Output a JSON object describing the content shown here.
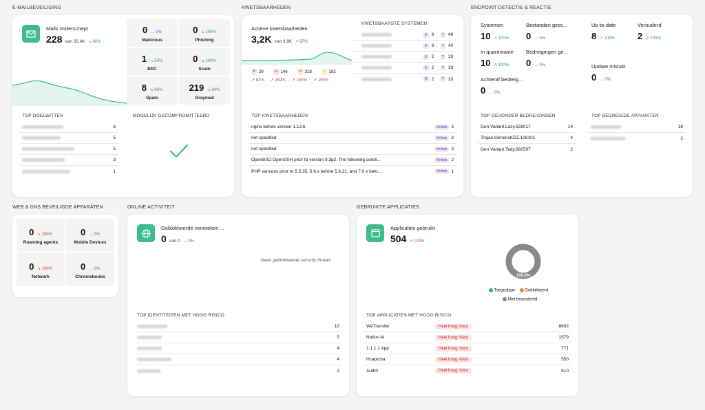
{
  "sections": {
    "email": "E-MAILBEVEILIGING",
    "vuln": "KWETSBAARHEDEN",
    "edr": "ENDPOINT DETECTIE & REACTIE",
    "web": "WEB & DNS BEVEILIGDE APPARATEN",
    "online": "ONLINE ACTIVITEIT",
    "apps": "GEBRUIKTE APPLICATIES"
  },
  "email": {
    "title": "Mails onderschept",
    "value": "228",
    "of": "van 35,4K",
    "trend": "↘ 86%",
    "tiles": [
      {
        "value": "0",
        "trend": "→ 0%",
        "label": "Malicious"
      },
      {
        "value": "0",
        "trend": "↘ 100%",
        "label": "Phishing"
      },
      {
        "value": "1",
        "trend": "↘ 50%",
        "label": "BEC"
      },
      {
        "value": "0",
        "trend": "↘ 100%",
        "label": "Scam"
      },
      {
        "value": "8",
        "trend": "↘ 96%",
        "label": "Spam"
      },
      {
        "value": "219",
        "trend": "↘ 84%",
        "label": "Graymail"
      }
    ],
    "top_targets_title": "TOP DOELWITTEN",
    "top_targets": [
      "6",
      "5",
      "5",
      "3",
      "1"
    ],
    "compromised_title": "MOGELIJK GECOMPROMITTEERD"
  },
  "vuln": {
    "title": "Actieve kwetsbaarheden",
    "value": "3,2K",
    "of": "van 3,9K",
    "trend": "↗ 97%",
    "chips": [
      {
        "letter": "K",
        "value": "29",
        "trend": "↗ 81%"
      },
      {
        "letter": "H",
        "value": "146",
        "trend": "↗ 152%"
      },
      {
        "letter": "M",
        "value": "318",
        "trend": "↗ 150%"
      },
      {
        "letter": "L",
        "value": "182",
        "trend": "↗ 109%"
      }
    ],
    "systems_title": "KWETSBAARSTE SYSTEMEN",
    "systems": [
      {
        "k": "9",
        "t": "46"
      },
      {
        "k": "9",
        "t": "40"
      },
      {
        "k": "2",
        "t": "33"
      },
      {
        "k": "2",
        "t": "33"
      },
      {
        "k": "2",
        "t": "33"
      }
    ],
    "top_title": "TOP KWETSBAARHEDEN",
    "top": [
      {
        "name": "nginx before version 1.13.6.",
        "sev": "Kritiek",
        "count": "3"
      },
      {
        "name": "not specified",
        "sev": "Kritiek",
        "count": "3"
      },
      {
        "name": "not specified",
        "sev": "Kritiek",
        "count": "3"
      },
      {
        "name": "OpenBSD OpenSSH prior to version 9.3p2. The following condi...",
        "sev": "Kritiek",
        "count": "2"
      },
      {
        "name": "PHP versions prior to 5.5.35, 5.6.x before 5.6.21, and 7.0.x befo...",
        "sev": "Kritiek",
        "count": "1"
      }
    ]
  },
  "edr": {
    "stats": [
      {
        "label": "Systemen",
        "value": "10",
        "trend": "↗ 100%"
      },
      {
        "label": "Bestanden gesc...",
        "value": "0",
        "trend": "→ 0%"
      },
      {
        "label": "Up-to-date",
        "value": "8",
        "trend": "↗ 100%"
      },
      {
        "label": "Verouderd",
        "value": "2",
        "trend": "↗ 100%"
      },
      {
        "label": "In quarantaine",
        "value": "10",
        "trend": "↗ 100%"
      },
      {
        "label": "Bedreigingen ge...",
        "value": "0",
        "trend": "→ 0%"
      },
      {
        "label": "Update mislukt",
        "value": "0",
        "trend": "→ 0%"
      },
      {
        "label": "Achteraf bedreig...",
        "value": "0",
        "trend": "→ 0%"
      }
    ],
    "threats_title": "TOP GEVONDEN BEDREIGINGEN",
    "threats": [
      {
        "name": "Gen:Variant.Lazy.559017",
        "count": "14"
      },
      {
        "name": "Trojan.GenericKDZ.108101",
        "count": "4"
      },
      {
        "name": "Gen:Variant.Tedy.660597",
        "count": "2"
      }
    ],
    "devices_title": "TOP BEDREIGDE APPARATEN",
    "devices": [
      "18",
      "2"
    ]
  },
  "web": {
    "tiles": [
      {
        "value": "0",
        "trend": "↘ 100%",
        "label": "Roaming agents"
      },
      {
        "value": "0",
        "trend": "→ 0%",
        "label": "Mobile Devices"
      },
      {
        "value": "0",
        "trend": "↘ 100%",
        "label": "Network"
      },
      {
        "value": "0",
        "trend": "→ 0%",
        "label": "Chromebooks"
      }
    ]
  },
  "online": {
    "title": "Geblokkeerde verzoeken ...",
    "value": "0",
    "of": "van 0",
    "trend": "→ 0%",
    "empty": "Geen geblokkeerde security threats",
    "identities_title": "TOP IDENTITEITEN MET HOOG RISICO",
    "identities": [
      "10",
      "5",
      "4",
      "4",
      "2"
    ]
  },
  "apps": {
    "title": "Applicaties gebruikt",
    "value": "504",
    "trend": "↗ 100%",
    "donut_label": "100,0%",
    "legend": [
      {
        "label": "Toegestaan",
        "color": "#2fb37a"
      },
      {
        "label": "Geblokkeerd",
        "color": "#e8883a"
      },
      {
        "label": "Niet beoordeeld",
        "color": "#8a8a8a"
      }
    ],
    "top_title": "TOP APPLICATIES MET HOOG RISICO",
    "top": [
      {
        "name": "WeTransfer",
        "risk": "Heel hoog risico",
        "count": "8602"
      },
      {
        "name": "Notion AI",
        "risk": "Heel hoog risico",
        "count": "1579"
      },
      {
        "name": "1.1.1.1 App",
        "risk": "Heel hoog risico",
        "count": "771"
      },
      {
        "name": "Hcaptcha",
        "risk": "Heel hoog risico",
        "count": "550"
      },
      {
        "name": "Auth0",
        "risk": "Heel hoog risico",
        "count": "510"
      }
    ]
  }
}
